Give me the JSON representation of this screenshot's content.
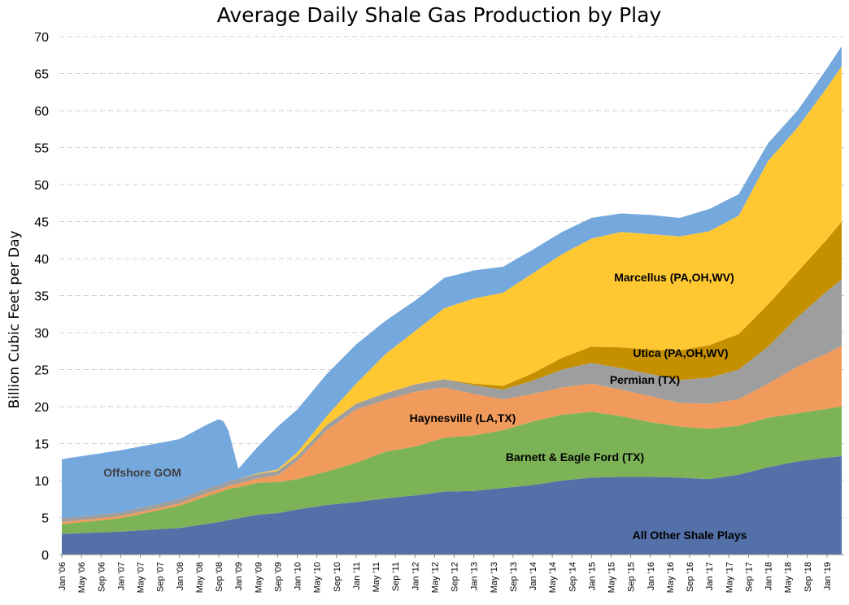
{
  "chart_data": {
    "type": "area",
    "stacked": true,
    "title": "Average Daily Shale Gas Production by Play",
    "xlabel": "",
    "ylabel": "Billion Cubic Feet per Day",
    "ylim": [
      0,
      70
    ],
    "yticks": [
      0,
      5,
      10,
      15,
      20,
      25,
      30,
      35,
      40,
      45,
      50,
      55,
      60,
      65,
      70
    ],
    "grid": true,
    "x_range": [
      "Jan '06",
      "Apr '19"
    ],
    "xtick_labels": [
      "Jan '06",
      "May '06",
      "Sep '06",
      "Jan '07",
      "May '07",
      "Sep '07",
      "Jan '08",
      "May '08",
      "Sep '08",
      "Jan '09",
      "May '09",
      "Sep '09",
      "Jan '10",
      "May '10",
      "Sep '10",
      "Jan '11",
      "May '11",
      "Sep '11",
      "Jan '12",
      "May '12",
      "Sep '12",
      "Jan '13",
      "May '13",
      "Sep '13",
      "Jan '14",
      "May '14",
      "Sep '14",
      "Jan '15",
      "May '15",
      "Sep '15",
      "Jan '16",
      "May '16",
      "Sep '16",
      "Jan '17",
      "May '17",
      "Sep '17",
      "Jan '18",
      "May '18",
      "Sep '18",
      "Jan '19"
    ],
    "anchor_months": [
      0,
      12,
      24,
      30,
      32,
      33,
      34,
      36,
      40,
      44,
      48,
      54,
      60,
      66,
      72,
      78,
      84,
      90,
      96,
      102,
      108,
      114,
      120,
      126,
      132,
      138,
      144,
      150,
      156,
      159
    ],
    "series": [
      {
        "name": "All  Other Shale Plays",
        "color": "#5470a8",
        "values": [
          2.8,
          3.1,
          3.6,
          4.2,
          4.4,
          4.5,
          4.7,
          4.9,
          5.4,
          5.6,
          6.1,
          6.7,
          7.1,
          7.6,
          8.0,
          8.5,
          8.6,
          9.0,
          9.4,
          10.0,
          10.4,
          10.5,
          10.5,
          10.4,
          10.2,
          10.8,
          11.8,
          12.6,
          13.1,
          13.3
        ]
      },
      {
        "name": "Barnett & Eagle Ford (TX)",
        "color": "#7cb357",
        "values": [
          1.3,
          1.8,
          3.0,
          3.8,
          4.0,
          4.1,
          4.2,
          4.2,
          4.3,
          4.2,
          4.1,
          4.5,
          5.3,
          6.3,
          6.6,
          7.3,
          7.5,
          7.8,
          8.6,
          8.9,
          8.9,
          8.2,
          7.4,
          6.9,
          6.8,
          6.6,
          6.7,
          6.5,
          6.6,
          6.7
        ]
      },
      {
        "name": "Haynesville (LA,TX)",
        "color": "#f09a5b",
        "values": [
          0.3,
          0.3,
          0.3,
          0.4,
          0.4,
          0.4,
          0.4,
          0.5,
          0.6,
          0.9,
          2.5,
          5.6,
          7.2,
          7.0,
          7.4,
          6.8,
          5.6,
          4.2,
          3.7,
          3.7,
          3.8,
          3.6,
          3.5,
          3.2,
          3.4,
          3.6,
          4.6,
          6.3,
          7.5,
          8.2
        ]
      },
      {
        "name": "Permian (TX)",
        "color": "#9e9e9e",
        "values": [
          0.5,
          0.5,
          0.6,
          0.6,
          0.6,
          0.6,
          0.6,
          0.6,
          0.6,
          0.6,
          0.6,
          0.7,
          0.8,
          0.9,
          1.0,
          1.1,
          1.2,
          1.3,
          1.8,
          2.4,
          2.8,
          2.9,
          3.0,
          3.1,
          3.5,
          4.0,
          5.0,
          6.7,
          8.4,
          9.0
        ]
      },
      {
        "name": "Utica (PA,OH,WV)",
        "color": "#c49000",
        "values": [
          0,
          0,
          0,
          0,
          0,
          0,
          0,
          0,
          0,
          0,
          0,
          0,
          0,
          0,
          0,
          0,
          0.2,
          0.5,
          1.0,
          1.6,
          2.2,
          2.8,
          3.3,
          4.0,
          4.4,
          4.8,
          5.7,
          6.1,
          7.0,
          7.8
        ]
      },
      {
        "name": "Marcellus (PA,OH,WV)",
        "color": "#ffc832",
        "values": [
          0,
          0,
          0,
          0,
          0,
          0,
          0,
          0,
          0.1,
          0.2,
          0.5,
          1.2,
          2.7,
          5.3,
          7.2,
          9.6,
          11.5,
          12.6,
          13.5,
          14.0,
          14.6,
          15.6,
          15.6,
          15.4,
          15.4,
          16.0,
          19.4,
          19.5,
          20.5,
          21.0
        ]
      },
      {
        "name": "Offshore GOM",
        "color": "#75a8dc",
        "values": [
          8.0,
          8.4,
          8.1,
          8.7,
          8.9,
          8.4,
          6.8,
          1.4,
          3.6,
          5.8,
          5.8,
          5.7,
          5.3,
          4.5,
          4.1,
          4.1,
          3.8,
          3.5,
          3.2,
          3.0,
          2.8,
          2.5,
          2.6,
          2.5,
          3.0,
          2.9,
          2.4,
          2.3,
          2.6,
          2.7
        ]
      }
    ],
    "annotations": [
      {
        "series": "Offshore GOM",
        "text": "Offshore GOM"
      },
      {
        "series": "Barnett & Eagle Ford (TX)",
        "text": "Barnett & Eagle Ford (TX)"
      },
      {
        "series": "Haynesville (LA,TX)",
        "text": "Haynesville (LA,TX)"
      },
      {
        "series": "Permian (TX)",
        "text": "Permian (TX)"
      },
      {
        "series": "Utica (PA,OH,WV)",
        "text": "Utica (PA,OH,WV)"
      },
      {
        "series": "Marcellus (PA,OH,WV)",
        "text": "Marcellus (PA,OH,WV)"
      },
      {
        "series": "All  Other Shale Plays",
        "text": "All  Other Shale Plays"
      }
    ]
  }
}
